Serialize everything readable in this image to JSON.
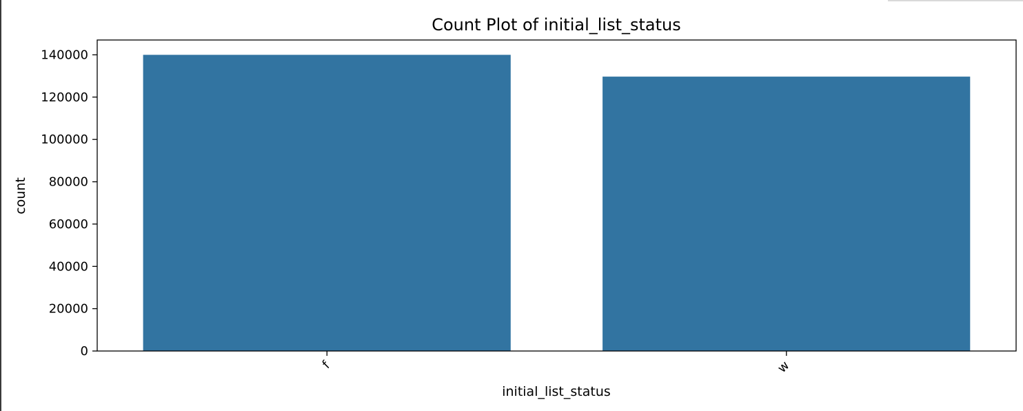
{
  "chart_data": {
    "type": "bar",
    "title": "Count Plot of initial_list_status",
    "xlabel": "initial_list_status",
    "ylabel": "count",
    "categories": [
      "f",
      "w"
    ],
    "values": [
      140000,
      129700
    ],
    "ylim": [
      0,
      147000
    ],
    "yticks": [
      0,
      20000,
      40000,
      60000,
      80000,
      100000,
      120000,
      140000
    ],
    "bar_color": "#3274a1",
    "xtick_rotation_deg": 45,
    "grid": false,
    "legend": "none"
  }
}
